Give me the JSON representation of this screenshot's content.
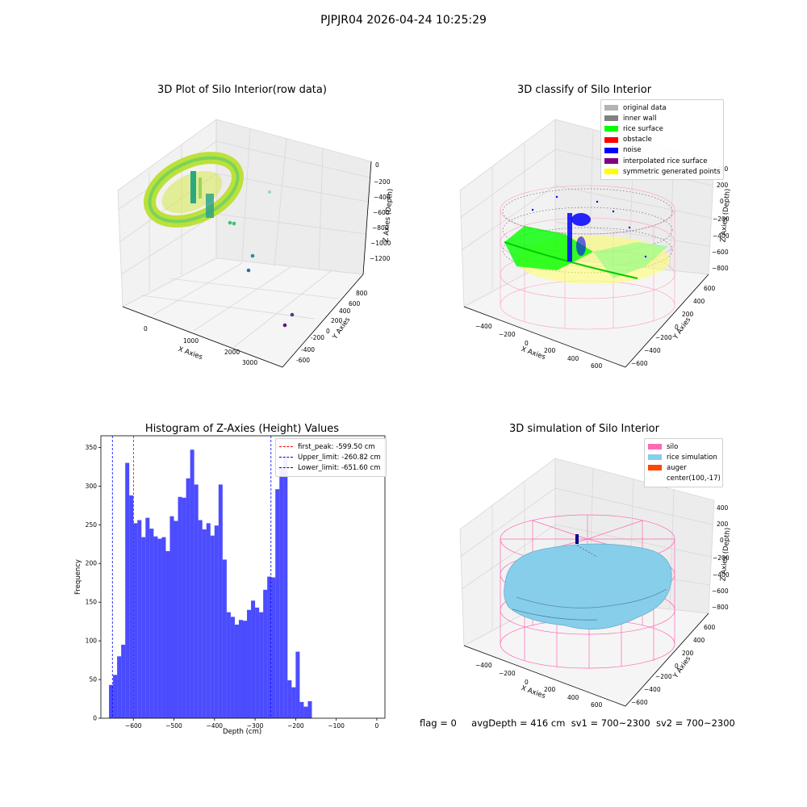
{
  "suptitle": "PJPJR04 2026-04-24 10:25:29",
  "panels": {
    "raw": {
      "title": "3D Plot of Silo Interior(row data)",
      "xlabel": "X Axies",
      "ylabel": "Y Axies",
      "zlabel": "Z Axies (Depth)",
      "xticks": [
        "0",
        "1000",
        "2000",
        "3000"
      ],
      "yticks": [
        "-600",
        "-400",
        "-200",
        "0",
        "200",
        "400",
        "600",
        "800"
      ],
      "zticks": [
        "0",
        "−200",
        "−400",
        "−600",
        "−800",
        "−1000",
        "−1200"
      ]
    },
    "classify": {
      "title": "3D classify of Silo Interior",
      "xlabel": "X Axies",
      "ylabel": "Y Axies",
      "zlabel": "Z Axies (Depth)",
      "xticks": [
        "−400",
        "−200",
        "0",
        "200",
        "400",
        "600"
      ],
      "yticks": [
        "−600",
        "−400",
        "−200",
        "0",
        "200",
        "400",
        "600"
      ],
      "zticks": [
        "400",
        "200",
        "0",
        "−200",
        "−400",
        "−600",
        "−800"
      ],
      "legend": [
        {
          "label": "original data",
          "color": "#b3b3b3"
        },
        {
          "label": "inner wall",
          "color": "#808080"
        },
        {
          "label": "rice surface",
          "color": "#00ff00"
        },
        {
          "label": "obstacle",
          "color": "#ff0000"
        },
        {
          "label": "noise",
          "color": "#0000ff"
        },
        {
          "label": "interpolated rice surface",
          "color": "#800080"
        },
        {
          "label": "symmetric generated points",
          "color": "#ffff00"
        }
      ]
    },
    "simulation": {
      "title": "3D simulation of Silo Interior",
      "xlabel": "X Axies",
      "ylabel": "Y Axies",
      "zlabel": "Z Axies (Depth)",
      "xticks": [
        "−400",
        "−200",
        "0",
        "200",
        "400",
        "600"
      ],
      "yticks": [
        "−600",
        "−400",
        "−200",
        "0",
        "200",
        "400",
        "600"
      ],
      "zticks": [
        "400",
        "200",
        "0",
        "−200",
        "−400",
        "−600",
        "−800"
      ],
      "legend": [
        {
          "label": "silo",
          "color": "#ff69b4"
        },
        {
          "label": "rice simulation",
          "color": "#87ceeb"
        },
        {
          "label": "auger",
          "color": "#ff4500"
        },
        {
          "label": "center(100,-17)",
          "color": ""
        }
      ]
    }
  },
  "status": {
    "flag": "flag = 0",
    "avg_depth": "avgDepth = 416 cm",
    "sv1": "sv1 = 700~2300",
    "sv2": "sv2 = 700~2300"
  },
  "chart_data": [
    {
      "type": "scatter",
      "title": "3D Plot of Silo Interior(row data)",
      "xlabel": "X Axies",
      "ylabel": "Y Axies",
      "zlabel": "Z Axies (Depth)",
      "xlim": [
        -500,
        3500
      ],
      "ylim": [
        -700,
        900
      ],
      "zlim": [
        -1300,
        50
      ]
    },
    {
      "type": "scatter",
      "title": "3D classify of Silo Interior",
      "xlabel": "X Axies",
      "ylabel": "Y Axies",
      "zlabel": "Z Axies (Depth)",
      "xlim": [
        -500,
        700
      ],
      "ylim": [
        -700,
        700
      ],
      "zlim": [
        -900,
        450
      ]
    },
    {
      "type": "bar",
      "title": "Histogram of Z-Axies (Height) Values",
      "xlabel": "Depth (cm)",
      "ylabel": "Frequency",
      "xlim": [
        -680,
        20
      ],
      "ylim": [
        0,
        365
      ],
      "bar_color": "#0000ff",
      "bin_start": -660,
      "bin_width": 10,
      "values": [
        43,
        56,
        80,
        95,
        330,
        288,
        252,
        256,
        234,
        259,
        245,
        235,
        232,
        234,
        216,
        261,
        255,
        286,
        285,
        310,
        347,
        302,
        256,
        244,
        252,
        236,
        249,
        302,
        205,
        137,
        131,
        121,
        127,
        126,
        140,
        152,
        143,
        137,
        166,
        183,
        182,
        296,
        323,
        337,
        49,
        40,
        86,
        21,
        15,
        22
      ],
      "xticks": [
        "−600",
        "−500",
        "−400",
        "−300",
        "−200",
        "−100",
        "0"
      ],
      "xtick_values": [
        -600,
        -500,
        -400,
        -300,
        -200,
        -100,
        0
      ],
      "yticks": [
        "0",
        "50",
        "100",
        "150",
        "200",
        "250",
        "300",
        "350"
      ],
      "ytick_values": [
        0,
        50,
        100,
        150,
        200,
        250,
        300,
        350
      ],
      "vlines": [
        {
          "label": "first_peak: -599.50 cm",
          "x": -599.5,
          "color": "#ff0000"
        },
        {
          "label": "Upper_limit: -260.82 cm",
          "x": -260.82,
          "color": "#0000ff"
        },
        {
          "label": "Lower_limit: -651.60 cm",
          "x": -651.6,
          "color": "#0000ff"
        }
      ]
    },
    {
      "type": "area",
      "title": "3D simulation of Silo Interior",
      "xlabel": "X Axies",
      "ylabel": "Y Axies",
      "zlabel": "Z Axies (Depth)",
      "xlim": [
        -500,
        700
      ],
      "ylim": [
        -700,
        700
      ],
      "zlim": [
        -900,
        450
      ]
    }
  ]
}
